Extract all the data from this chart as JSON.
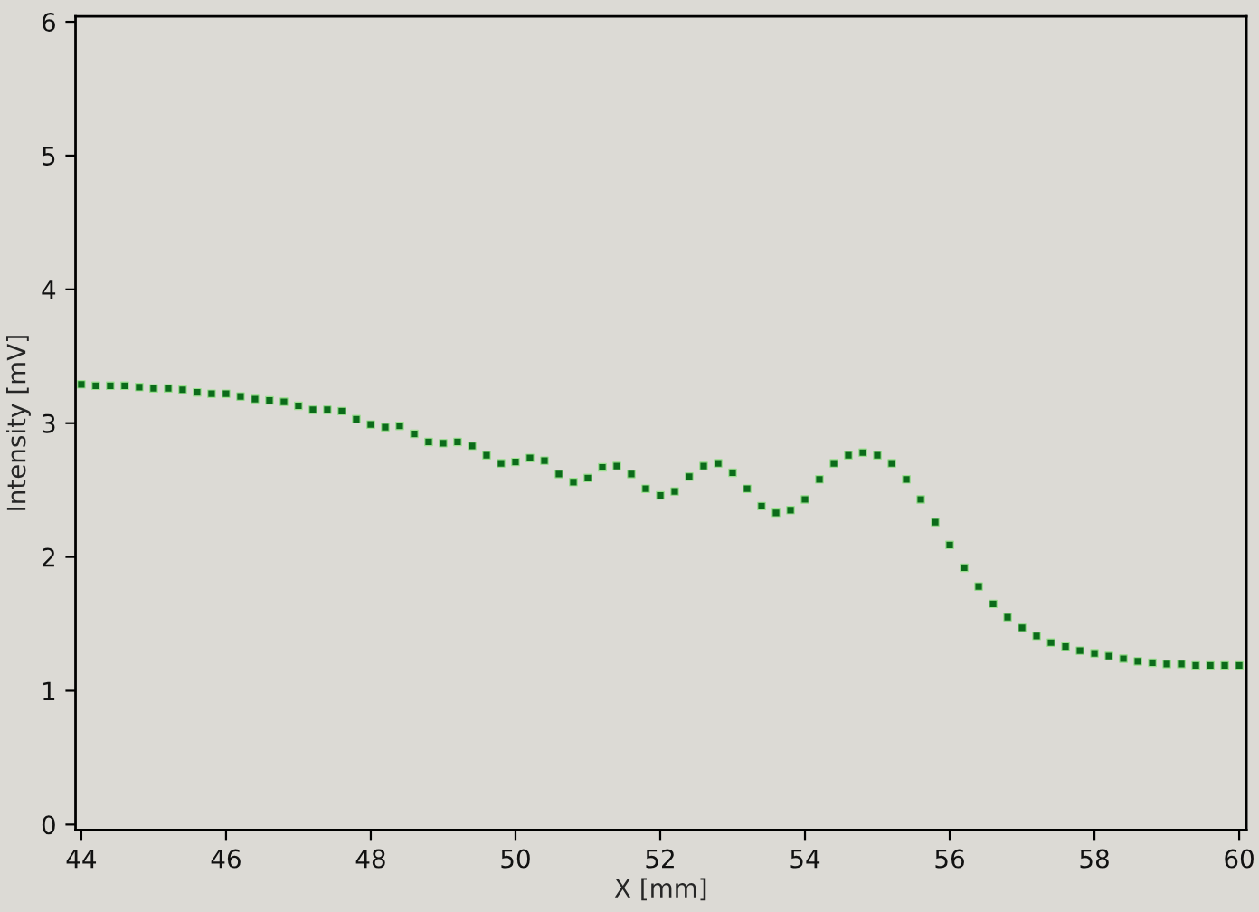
{
  "chart_data": {
    "type": "scatter",
    "xlabel": "X [mm]",
    "ylabel": "Intensity [mV]",
    "xlim": [
      43.92,
      60.1
    ],
    "ylim": [
      -0.04,
      6.04
    ],
    "xticks": [
      44,
      46,
      48,
      50,
      52,
      54,
      56,
      58,
      60
    ],
    "yticks": [
      0,
      1,
      2,
      3,
      4,
      5,
      6
    ],
    "grid": false,
    "marker": "square",
    "series": [
      {
        "color": "#0b6b1a",
        "x": [
          44.0,
          44.2,
          44.4,
          44.6,
          44.8,
          45.0,
          45.2,
          45.4,
          45.6,
          45.8,
          46.0,
          46.2,
          46.4,
          46.6,
          46.8,
          47.0,
          47.2,
          47.4,
          47.6,
          47.8,
          48.0,
          48.2,
          48.4,
          48.6,
          48.8,
          49.0,
          49.2,
          49.4,
          49.6,
          49.8,
          50.0,
          50.2,
          50.4,
          50.6,
          50.8,
          51.0,
          51.2,
          51.4,
          51.6,
          51.8,
          52.0,
          52.2,
          52.4,
          52.6,
          52.8,
          53.0,
          53.2,
          53.4,
          53.6,
          53.8,
          54.0,
          54.2,
          54.4,
          54.6,
          54.8,
          55.0,
          55.2,
          55.4,
          55.6,
          55.8,
          56.0,
          56.2,
          56.4,
          56.6,
          56.8,
          57.0,
          57.2,
          57.4,
          57.6,
          57.8,
          58.0,
          58.2,
          58.4,
          58.6,
          58.8,
          59.0,
          59.2,
          59.4,
          59.6,
          59.8,
          60.0
        ],
        "values": [
          3.29,
          3.28,
          3.28,
          3.28,
          3.27,
          3.26,
          3.26,
          3.25,
          3.23,
          3.22,
          3.22,
          3.2,
          3.18,
          3.17,
          3.16,
          3.13,
          3.1,
          3.1,
          3.09,
          3.03,
          2.99,
          2.97,
          2.98,
          2.92,
          2.86,
          2.85,
          2.86,
          2.83,
          2.76,
          2.7,
          2.71,
          2.74,
          2.72,
          2.62,
          2.56,
          2.59,
          2.67,
          2.68,
          2.62,
          2.51,
          2.46,
          2.49,
          2.6,
          2.68,
          2.7,
          2.63,
          2.51,
          2.38,
          2.33,
          2.35,
          2.43,
          2.58,
          2.7,
          2.76,
          2.78,
          2.76,
          2.7,
          2.58,
          2.43,
          2.26,
          2.09,
          1.92,
          1.78,
          1.65,
          1.55,
          1.47,
          1.41,
          1.36,
          1.33,
          1.3,
          1.28,
          1.26,
          1.24,
          1.22,
          1.21,
          1.2,
          1.2,
          1.19,
          1.19,
          1.19,
          1.19
        ]
      }
    ]
  }
}
